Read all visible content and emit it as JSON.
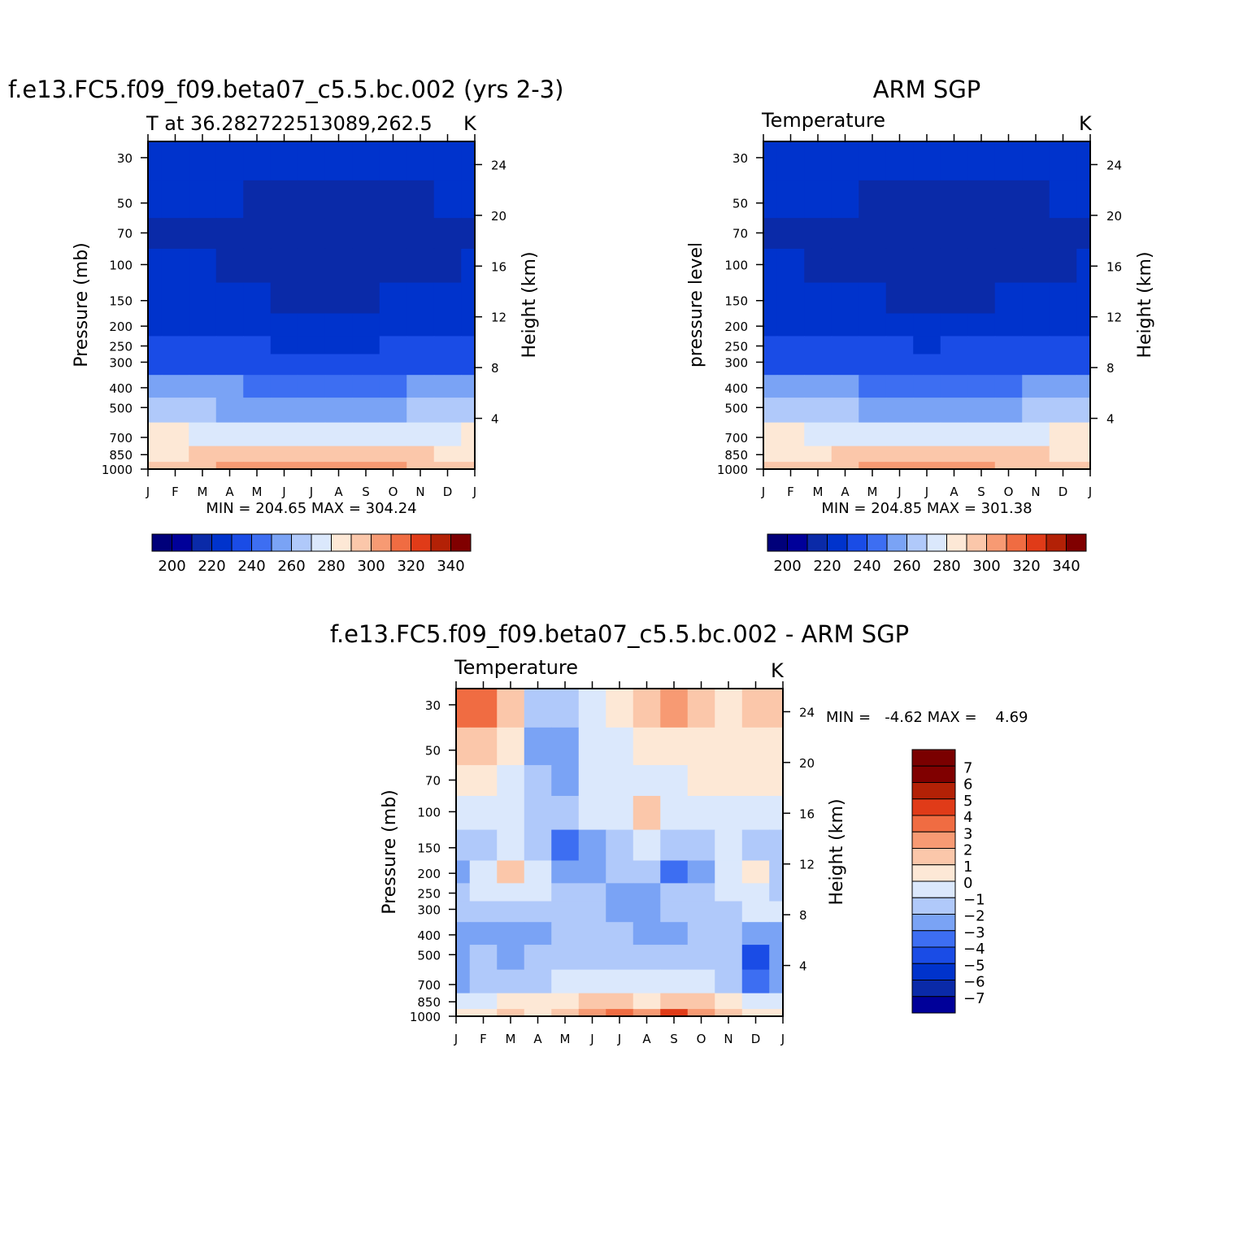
{
  "months": [
    "J",
    "F",
    "M",
    "A",
    "M",
    "J",
    "J",
    "A",
    "S",
    "O",
    "N",
    "D",
    "J"
  ],
  "pressure_ticks": [
    30,
    50,
    70,
    100,
    150,
    200,
    250,
    300,
    400,
    500,
    700,
    850,
    1000
  ],
  "height_ticks": [
    24,
    20,
    16,
    12,
    8,
    4
  ],
  "abs_palette": [
    "#000099",
    "#0a2aa8",
    "#0033cc",
    "#1a4ce6",
    "#3d6ef2",
    "#7aa3f5",
    "#b0c9fa",
    "#dbe8fc",
    "#fde8d6",
    "#fbc7aa",
    "#f79a73",
    "#f06c42",
    "#e03b18",
    "#b32106",
    "#800000"
  ],
  "abs_levels": [
    195,
    200,
    210,
    220,
    230,
    240,
    250,
    260,
    270,
    280,
    290,
    300,
    310,
    320,
    330,
    340,
    345
  ],
  "diff_palette": [
    "#000099",
    "#0a2aa8",
    "#0033cc",
    "#1a4ce6",
    "#3d6ef2",
    "#7aa3f5",
    "#b0c9fa",
    "#dbe8fc",
    "#fde8d6",
    "#fbc7aa",
    "#f79a73",
    "#f06c42",
    "#e03b18",
    "#b32106",
    "#800000"
  ],
  "chart_data": [
    {
      "type": "heatmap",
      "title": "f.e13.FC5.f09_f09.beta07_c5.5.bc.002 (yrs 2-3)",
      "subtitle": "T at 36.282722513089,262.5",
      "units": "K",
      "ylabel": "Pressure (mb)",
      "ylabel_right": "Height (km)",
      "x": [
        "J",
        "F",
        "M",
        "A",
        "M",
        "J",
        "J",
        "A",
        "S",
        "O",
        "N",
        "D",
        "J"
      ],
      "y_pressure": [
        30,
        50,
        70,
        100,
        150,
        200,
        250,
        300,
        400,
        500,
        700,
        850,
        1000
      ],
      "min_max_text": "MIN = 204.65 MAX = 304.24",
      "colorbar_labels": [
        "200",
        "220",
        "240",
        "260",
        "280",
        "300",
        "320",
        "340"
      ],
      "values": [
        [
          215,
          215,
          215,
          215,
          215,
          215,
          213,
          212,
          213,
          214,
          215,
          215,
          215
        ],
        [
          211,
          211,
          211,
          210,
          209,
          208,
          208,
          208,
          208,
          208,
          209,
          211,
          211
        ],
        [
          207,
          206,
          206,
          208,
          206,
          206,
          206,
          206,
          206,
          206,
          207,
          206,
          207
        ],
        [
          212,
          210,
          210,
          206,
          205,
          205,
          205,
          205,
          205,
          205,
          206,
          209,
          212
        ],
        [
          214,
          214,
          214,
          213,
          210,
          208,
          208,
          208,
          208,
          210,
          211,
          213,
          214
        ],
        [
          217,
          217,
          217,
          217,
          216,
          216,
          216,
          216,
          216,
          216,
          217,
          217,
          217
        ],
        [
          222,
          222,
          221,
          221,
          220,
          219,
          218,
          219,
          219,
          220,
          221,
          222,
          222
        ],
        [
          227,
          227,
          226,
          225,
          224,
          222,
          221,
          222,
          223,
          224,
          225,
          226,
          227
        ],
        [
          242,
          242,
          241,
          240,
          238,
          236,
          235,
          236,
          237,
          238,
          240,
          241,
          242
        ],
        [
          253,
          253,
          251,
          249,
          247,
          245,
          244,
          245,
          246,
          248,
          250,
          252,
          253
        ],
        [
          270,
          270,
          268,
          266,
          263,
          261,
          260,
          261,
          262,
          264,
          266,
          269,
          270
        ],
        [
          278,
          278,
          280,
          283,
          286,
          288,
          289,
          288,
          287,
          285,
          283,
          279,
          278
        ],
        [
          283,
          283,
          285,
          290,
          293,
          296,
          299,
          297,
          294,
          292,
          288,
          285,
          283
        ]
      ]
    },
    {
      "type": "heatmap",
      "title": "ARM SGP",
      "subtitle": "Temperature",
      "units": "K",
      "ylabel": "pressure level",
      "ylabel_right": "Height (km)",
      "x": [
        "J",
        "F",
        "M",
        "A",
        "M",
        "J",
        "J",
        "A",
        "S",
        "O",
        "N",
        "D",
        "J"
      ],
      "y_pressure": [
        30,
        50,
        70,
        100,
        150,
        200,
        250,
        300,
        400,
        500,
        700,
        850,
        1000
      ],
      "min_max_text": "MIN = 204.85 MAX = 301.38",
      "colorbar_labels": [
        "200",
        "220",
        "240",
        "260",
        "280",
        "300",
        "320",
        "340"
      ],
      "values": [
        [
          215,
          215,
          215,
          215,
          215,
          214,
          213,
          212,
          213,
          214,
          215,
          215,
          215
        ],
        [
          211,
          211,
          211,
          210,
          209,
          208,
          208,
          208,
          208,
          208,
          209,
          211,
          211
        ],
        [
          207,
          207,
          206,
          207,
          206,
          206,
          206,
          206,
          206,
          206,
          207,
          207,
          207
        ],
        [
          213,
          211,
          208,
          207,
          206,
          205,
          205,
          205,
          205,
          206,
          207,
          209,
          213
        ],
        [
          215,
          214,
          213,
          213,
          211,
          209,
          208,
          208,
          209,
          211,
          212,
          214,
          215
        ],
        [
          218,
          218,
          218,
          218,
          217,
          217,
          216,
          216,
          217,
          217,
          218,
          218,
          218
        ],
        [
          223,
          223,
          223,
          222,
          221,
          220,
          219,
          220,
          220,
          221,
          222,
          223,
          223
        ],
        [
          228,
          228,
          227,
          226,
          225,
          223,
          222,
          223,
          224,
          225,
          226,
          227,
          228
        ],
        [
          243,
          243,
          242,
          241,
          239,
          237,
          236,
          237,
          238,
          239,
          241,
          242,
          243
        ],
        [
          254,
          254,
          252,
          250,
          248,
          246,
          245,
          246,
          247,
          249,
          251,
          253,
          254
        ],
        [
          271,
          271,
          269,
          267,
          264,
          262,
          261,
          262,
          263,
          265,
          267,
          270,
          271
        ],
        [
          276,
          276,
          278,
          281,
          284,
          286,
          287,
          286,
          285,
          283,
          281,
          277,
          276
        ],
        [
          280,
          280,
          282,
          287,
          290,
          293,
          296,
          294,
          291,
          289,
          285,
          282,
          280
        ]
      ]
    },
    {
      "type": "heatmap",
      "title": "f.e13.FC5.f09_f09.beta07_c5.5.bc.002 - ARM SGP",
      "subtitle": "Temperature",
      "units": "K",
      "ylabel": "Pressure (mb)",
      "ylabel_right": "Height (km)",
      "x": [
        "J",
        "F",
        "M",
        "A",
        "M",
        "J",
        "J",
        "A",
        "S",
        "O",
        "N",
        "D",
        "J"
      ],
      "y_pressure": [
        30,
        50,
        70,
        100,
        150,
        200,
        250,
        300,
        400,
        500,
        700,
        850,
        1000
      ],
      "min_max_text": "MIN =   -4.62 MAX =    4.69",
      "colorbar_labels": [
        "7",
        "6",
        "5",
        "4",
        "3",
        "2",
        "1",
        "0",
        "-1",
        "-2",
        "-3",
        "-4",
        "-5",
        "-6",
        "-7"
      ],
      "values": [
        [
          3.5,
          3.0,
          1.0,
          -1.5,
          -1.5,
          -0.5,
          0.5,
          1.5,
          2.5,
          1.5,
          0.5,
          1.5,
          1.0
        ],
        [
          1.5,
          1.5,
          0.5,
          -2.5,
          -3.0,
          -1.0,
          -0.5,
          0.5,
          0.8,
          0.5,
          0.5,
          0.5,
          0.5
        ],
        [
          0.5,
          0.5,
          -0.5,
          -2.0,
          -2.5,
          -1.0,
          -1.0,
          -0.5,
          -0.5,
          0.5,
          0.5,
          0.5,
          0.5
        ],
        [
          -0.5,
          -0.5,
          -0.5,
          -1.5,
          -1.5,
          -0.5,
          -0.5,
          1.2,
          -0.5,
          -0.5,
          -0.5,
          -0.5,
          -0.5
        ],
        [
          -2.0,
          -1.5,
          -0.5,
          -2.0,
          -4.0,
          -2.5,
          -1.5,
          -0.5,
          -2.0,
          -2.0,
          -1.0,
          -1.5,
          -2.0
        ],
        [
          -3.0,
          -1.0,
          1.5,
          -1.0,
          -2.5,
          -2.5,
          -2.0,
          -1.5,
          -3.5,
          -2.5,
          -0.5,
          0.5,
          -2.0
        ],
        [
          -2.0,
          -1.0,
          -0.5,
          -1.0,
          -2.0,
          -2.0,
          -2.5,
          -2.5,
          -2.0,
          -1.5,
          -0.5,
          -0.5,
          -1.5
        ],
        [
          -1.5,
          -1.5,
          -1.5,
          -1.5,
          -1.5,
          -2.0,
          -2.5,
          -2.5,
          -2.0,
          -1.5,
          -1.5,
          -1.0,
          -1.0
        ],
        [
          -3.0,
          -3.0,
          -3.0,
          -2.5,
          -2.0,
          -2.0,
          -2.0,
          -2.5,
          -2.5,
          -2.0,
          -2.0,
          -2.5,
          -2.5
        ],
        [
          -2.5,
          -2.0,
          -2.5,
          -2.0,
          -1.5,
          -1.5,
          -1.5,
          -1.5,
          -1.5,
          -1.5,
          -2.0,
          -4.5,
          -3.0
        ],
        [
          -2.5,
          -2.0,
          -1.5,
          -1.5,
          -0.5,
          -0.5,
          -0.5,
          -0.5,
          -0.5,
          -1.0,
          -1.5,
          -4.0,
          -3.0
        ],
        [
          -1.0,
          -0.5,
          0.5,
          0.5,
          0.8,
          1.5,
          1.5,
          0.5,
          1.5,
          1.0,
          0.5,
          -1.0,
          -1.0
        ],
        [
          0.5,
          0.5,
          1.0,
          0.5,
          1.5,
          2.5,
          3.5,
          2.5,
          4.0,
          2.5,
          1.5,
          0.5,
          0.5
        ]
      ]
    }
  ]
}
